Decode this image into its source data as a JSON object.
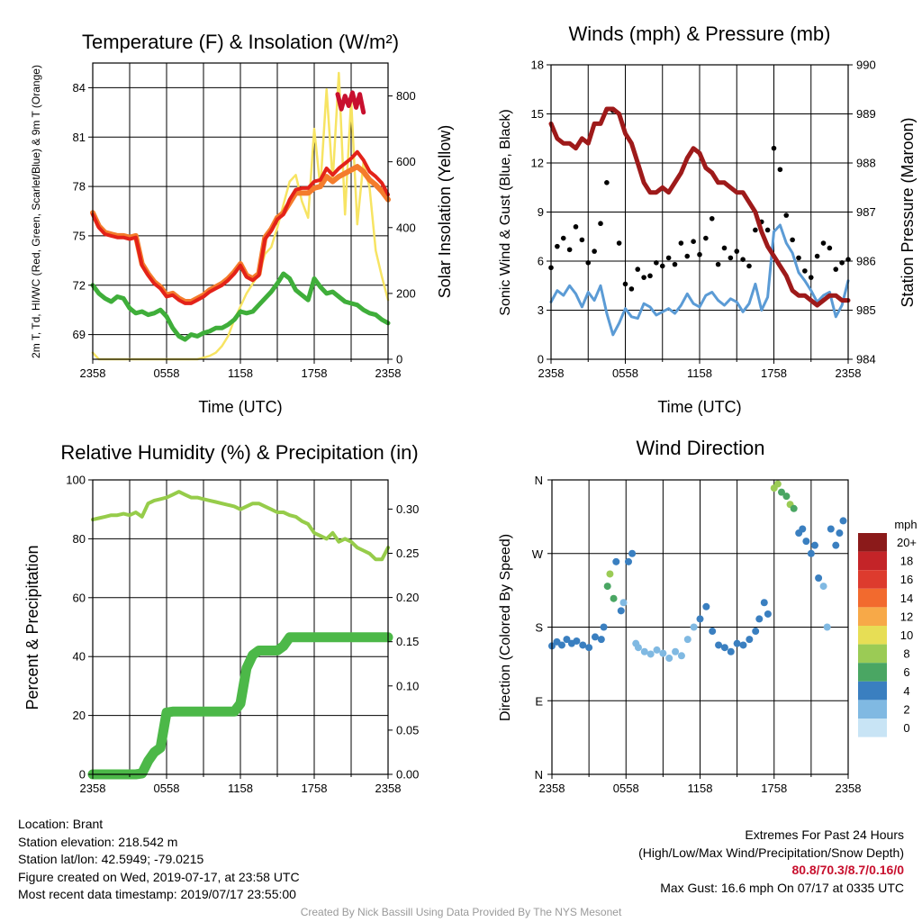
{
  "colors": {
    "air_temp": "#e32219",
    "dewpoint": "#3fae3a",
    "heat_index": "#c8102e",
    "temp_9m": "#f47c2c",
    "insolation": "#f7e463",
    "sonic_wind": "#5b9bd5",
    "gust": "#000000",
    "pressure": "#9e1a1a",
    "rh": "#96cc4a",
    "precip": "#4cb848"
  },
  "footer": {
    "location": "Location: Brant",
    "elevation": "Station elevation: 218.542 m",
    "latlon": "Station lat/lon: 42.5949; -79.0215",
    "created": "Figure created on Wed, 2019-07-17, at 23:58 UTC",
    "recent": "Most recent data timestamp: 2019/07/17 23:55:00",
    "extremes_title": "Extremes For Past 24 Hours",
    "extremes_sub": "(High/Low/Max Wind/Precipitation/Snow Depth)",
    "extremes_values": "80.8/70.3/8.7/0.16/0",
    "max_gust": "Max Gust: 16.6 mph On 07/17 at 0335 UTC",
    "credit": "Created By Nick Bassill Using Data Provided By The NYS Mesonet"
  },
  "chart_data": [
    {
      "type": "line",
      "title": "Temperature (F) & Insolation (W/m²)",
      "xlabel": "Time (UTC)",
      "ylabel": "2m T, Td, HI/WC (Red, Green, Scarlet/Blue) & 9m T (Orange)",
      "ylabel_right": "Solar Insolation (Yellow)",
      "x_ticks": [
        "2358",
        "0558",
        "1158",
        "1758",
        "2358"
      ],
      "ylim": [
        67.5,
        85.5
      ],
      "y_ticks": [
        69,
        72,
        75,
        78,
        81,
        84
      ],
      "ylim_right": [
        0,
        900
      ],
      "y_ticks_right": [
        0,
        200,
        400,
        600,
        800
      ],
      "x_hours": [
        0,
        0.5,
        1,
        1.5,
        2,
        2.5,
        3,
        3.5,
        4,
        4.5,
        5,
        5.5,
        6,
        6.5,
        7,
        7.5,
        8,
        8.5,
        9,
        9.5,
        10,
        10.5,
        11,
        11.5,
        12,
        12.5,
        13,
        13.5,
        14,
        14.5,
        15,
        15.5,
        16,
        16.5,
        17,
        17.5,
        18,
        18.5,
        19,
        19.5,
        20,
        20.5,
        21,
        21.5,
        22,
        22.5,
        23,
        23.5,
        24
      ],
      "series": [
        {
          "key": "temp",
          "values": [
            76.3,
            75.5,
            75.1,
            75.0,
            74.9,
            74.9,
            74.8,
            74.9,
            73.2,
            72.6,
            72.1,
            71.8,
            71.3,
            71.4,
            71.1,
            70.9,
            70.9,
            71.1,
            71.3,
            71.6,
            71.8,
            72.0,
            72.3,
            72.7,
            73.2,
            72.5,
            72.3,
            72.6,
            74.8,
            75.3,
            76.0,
            76.3,
            77.2,
            77.8,
            77.9,
            77.9,
            78.3,
            78.4,
            79.1,
            78.7,
            79.1,
            79.4,
            79.7,
            80.1,
            79.6,
            78.9,
            78.6,
            78.2,
            77.5
          ]
        },
        {
          "key": "temp9m",
          "values": [
            76.4,
            75.6,
            75.2,
            75.1,
            75.0,
            75.0,
            74.9,
            75.0,
            73.3,
            72.7,
            72.2,
            71.9,
            71.4,
            71.5,
            71.2,
            71.0,
            71.0,
            71.2,
            71.4,
            71.7,
            71.9,
            72.1,
            72.4,
            72.8,
            73.3,
            72.6,
            72.4,
            72.7,
            74.9,
            75.4,
            76.1,
            76.4,
            77.0,
            77.6,
            77.6,
            77.6,
            77.9,
            78.0,
            78.6,
            78.3,
            78.6,
            78.8,
            79.0,
            79.2,
            78.9,
            78.4,
            78.1,
            77.7,
            77.2
          ]
        },
        {
          "key": "heat",
          "points": [
            [
              19.9,
              83.6
            ],
            [
              20.2,
              82.7
            ],
            [
              20.5,
              83.5
            ],
            [
              20.8,
              82.9
            ],
            [
              21.1,
              83.7
            ],
            [
              21.4,
              82.8
            ],
            [
              21.7,
              83.6
            ],
            [
              22.0,
              82.5
            ]
          ]
        },
        {
          "key": "dew",
          "values": [
            72.0,
            71.5,
            71.2,
            71.0,
            71.3,
            71.2,
            70.6,
            70.3,
            70.4,
            70.2,
            70.3,
            70.5,
            70.1,
            69.4,
            68.9,
            68.7,
            69.0,
            68.9,
            69.1,
            69.2,
            69.4,
            69.4,
            69.6,
            69.9,
            70.4,
            70.3,
            70.4,
            70.8,
            71.2,
            71.6,
            72.1,
            72.7,
            72.4,
            71.7,
            71.4,
            71.1,
            72.4,
            71.9,
            71.5,
            71.6,
            71.3,
            71.0,
            70.9,
            70.8,
            70.5,
            70.3,
            70.2,
            69.9,
            69.7
          ]
        },
        {
          "key": "insolation",
          "values": [
            20,
            0,
            0,
            0,
            0,
            0,
            0,
            0,
            0,
            0,
            0,
            0,
            0,
            0,
            0,
            0,
            0,
            0,
            5,
            10,
            20,
            40,
            70,
            120,
            160,
            200,
            230,
            260,
            320,
            340,
            400,
            470,
            540,
            560,
            480,
            430,
            700,
            520,
            820,
            540,
            870,
            440,
            790,
            410,
            600,
            520,
            330,
            250,
            180
          ]
        }
      ]
    },
    {
      "type": "line",
      "title": "Winds (mph) & Pressure (mb)",
      "xlabel": "Time (UTC)",
      "ylabel": "Sonic Wind & Gust (Blue, Black)",
      "ylabel_right": "Station Pressure (Maroon)",
      "x_ticks": [
        "2358",
        "0558",
        "1158",
        "1758",
        "2358"
      ],
      "ylim": [
        0,
        18
      ],
      "y_ticks": [
        0,
        3,
        6,
        9,
        12,
        15,
        18
      ],
      "ylim_right": [
        984,
        990
      ],
      "y_ticks_right": [
        984,
        985,
        986,
        987,
        988,
        989,
        990
      ],
      "x_hours": [
        0,
        0.5,
        1,
        1.5,
        2,
        2.5,
        3,
        3.5,
        4,
        4.5,
        5,
        5.5,
        6,
        6.5,
        7,
        7.5,
        8,
        8.5,
        9,
        9.5,
        10,
        10.5,
        11,
        11.5,
        12,
        12.5,
        13,
        13.5,
        14,
        14.5,
        15,
        15.5,
        16,
        16.5,
        17,
        17.5,
        18,
        18.5,
        19,
        19.5,
        20,
        20.5,
        21,
        21.5,
        22,
        22.5,
        23,
        23.5,
        24
      ],
      "series": [
        {
          "key": "wind",
          "values": [
            3.5,
            4.2,
            3.9,
            4.5,
            4.0,
            3.2,
            4.1,
            3.6,
            4.5,
            2.8,
            1.5,
            2.2,
            3.1,
            2.6,
            2.5,
            3.4,
            3.2,
            2.7,
            2.9,
            3.1,
            2.8,
            3.3,
            4.0,
            3.4,
            3.2,
            3.9,
            4.1,
            3.6,
            3.3,
            3.7,
            3.5,
            2.9,
            3.4,
            4.6,
            3.0,
            3.8,
            7.8,
            8.2,
            7.1,
            6.5,
            5.3,
            4.8,
            4.2,
            3.5,
            3.9,
            4.1,
            2.6,
            3.3,
            4.8
          ]
        },
        {
          "key": "gust",
          "values": [
            5.6,
            6.9,
            7.4,
            6.7,
            8.1,
            7.3,
            5.9,
            6.6,
            8.3,
            10.8,
            15.2,
            7.1,
            4.6,
            4.3,
            5.5,
            5.0,
            5.1,
            5.9,
            5.7,
            6.2,
            5.8,
            7.1,
            6.3,
            7.2,
            6.4,
            7.4,
            8.6,
            5.8,
            6.8,
            6.2,
            6.6,
            6.1,
            5.7,
            7.9,
            8.4,
            7.9,
            12.9,
            11.6,
            8.8,
            7.3,
            6.2,
            5.4,
            5.0,
            6.3,
            7.1,
            6.8,
            5.5,
            5.9,
            6.1
          ]
        },
        {
          "key": "pressure",
          "values": [
            988.8,
            988.5,
            988.4,
            988.4,
            988.3,
            988.5,
            988.4,
            988.8,
            988.8,
            989.1,
            989.1,
            989.0,
            988.6,
            988.4,
            988.0,
            987.6,
            987.4,
            987.4,
            987.5,
            987.4,
            987.6,
            987.8,
            988.1,
            988.3,
            988.2,
            987.9,
            987.8,
            987.6,
            987.6,
            987.5,
            987.4,
            987.4,
            987.2,
            987.0,
            986.6,
            986.3,
            986.1,
            985.9,
            985.7,
            985.4,
            985.3,
            985.3,
            985.2,
            985.1,
            985.2,
            985.3,
            985.3,
            985.2,
            985.2
          ]
        }
      ]
    },
    {
      "type": "line",
      "title": "Relative Humidity (%) & Precipitation (in)",
      "xlabel": "",
      "ylabel": "Percent & Precipitation",
      "x_ticks": [
        "2358",
        "0558",
        "1158",
        "1758",
        "2358"
      ],
      "ylim": [
        0,
        100
      ],
      "y_ticks": [
        0,
        20,
        40,
        60,
        80,
        100
      ],
      "ylim_right": [
        0,
        0.333
      ],
      "y_ticks_right": [
        "0.00",
        "0.05",
        "0.10",
        "0.15",
        "0.20",
        "0.25",
        "0.30"
      ],
      "x_hours": [
        0,
        0.5,
        1,
        1.5,
        2,
        2.5,
        3,
        3.5,
        4,
        4.5,
        5,
        5.5,
        6,
        6.5,
        7,
        7.5,
        8,
        8.5,
        9,
        9.5,
        10,
        10.5,
        11,
        11.5,
        12,
        12.5,
        13,
        13.5,
        14,
        14.5,
        15,
        15.5,
        16,
        16.5,
        17,
        17.5,
        18,
        18.5,
        19,
        19.5,
        20,
        20.5,
        21,
        21.5,
        22,
        22.5,
        23,
        23.5,
        24
      ],
      "series": [
        {
          "key": "rh",
          "values": [
            86.5,
            87,
            87.5,
            88,
            88,
            88.5,
            88,
            89,
            87.5,
            92,
            93,
            93.5,
            94,
            95,
            96,
            95,
            94,
            94,
            93.5,
            93,
            92.5,
            92,
            91.5,
            91,
            90,
            91,
            92,
            92,
            91,
            90,
            89,
            89,
            88,
            87.5,
            86,
            85,
            82,
            81,
            80,
            82,
            79,
            80,
            79,
            77,
            76,
            75,
            73,
            73,
            77
          ]
        },
        {
          "key": "precip",
          "values": [
            0,
            0,
            0,
            0,
            0,
            0,
            0,
            0,
            0.001,
            0.015,
            0.025,
            0.03,
            0.07,
            0.071,
            0.071,
            0.071,
            0.071,
            0.071,
            0.071,
            0.071,
            0.071,
            0.071,
            0.071,
            0.071,
            0.08,
            0.12,
            0.135,
            0.14,
            0.14,
            0.14,
            0.14,
            0.145,
            0.155,
            0.155,
            0.155,
            0.155,
            0.155,
            0.155,
            0.155,
            0.155,
            0.155,
            0.155,
            0.155,
            0.155,
            0.155,
            0.155,
            0.155,
            0.155,
            0.155
          ]
        }
      ]
    },
    {
      "type": "scatter",
      "title": "Wind Direction",
      "ylabel": "Direction (Colored By Speed)",
      "x_ticks": [
        "2358",
        "0558",
        "1158",
        "1758",
        "2358"
      ],
      "y_ticks": [
        "N",
        "E",
        "S",
        "W",
        "N"
      ],
      "ylim": [
        0,
        360
      ],
      "legend_title": "mph",
      "legend_labels": [
        "20+",
        "18",
        "16",
        "14",
        "12",
        "10",
        "8",
        "6",
        "4",
        "2",
        "0"
      ],
      "legend_colors": [
        "#8b1a1a",
        "#c42428",
        "#dd3b2e",
        "#f26a2e",
        "#f7a948",
        "#e7de55",
        "#9bcb55",
        "#4aa663",
        "#3a7fc0",
        "#80b9e2",
        "#c8e4f5"
      ],
      "points": [
        [
          0,
          157,
          3
        ],
        [
          0.4,
          162,
          3
        ],
        [
          0.8,
          158,
          4
        ],
        [
          1.2,
          165,
          3
        ],
        [
          1.6,
          160,
          3
        ],
        [
          2,
          163,
          4
        ],
        [
          2.5,
          158,
          3
        ],
        [
          3,
          155,
          3
        ],
        [
          3.5,
          168,
          3
        ],
        [
          4,
          165,
          4
        ],
        [
          4.2,
          180,
          3
        ],
        [
          4.5,
          230,
          6
        ],
        [
          4.7,
          245,
          7
        ],
        [
          5,
          215,
          5
        ],
        [
          5.2,
          260,
          3
        ],
        [
          5.6,
          200,
          3
        ],
        [
          5.8,
          210,
          2
        ],
        [
          6.2,
          260,
          4
        ],
        [
          6.5,
          270,
          3
        ],
        [
          6.8,
          160,
          2
        ],
        [
          7,
          155,
          2
        ],
        [
          7.5,
          150,
          2
        ],
        [
          8,
          147,
          2
        ],
        [
          8.5,
          152,
          2
        ],
        [
          9,
          148,
          2
        ],
        [
          9.5,
          142,
          1
        ],
        [
          10,
          150,
          2
        ],
        [
          10.5,
          145,
          2
        ],
        [
          11,
          165,
          2
        ],
        [
          11.5,
          180,
          2
        ],
        [
          12,
          190,
          3
        ],
        [
          12.5,
          205,
          4
        ],
        [
          13,
          175,
          3
        ],
        [
          13.5,
          158,
          3
        ],
        [
          14,
          155,
          3
        ],
        [
          14.5,
          150,
          3
        ],
        [
          15,
          160,
          3
        ],
        [
          15.5,
          158,
          3
        ],
        [
          16,
          165,
          3
        ],
        [
          16.5,
          175,
          3
        ],
        [
          16.8,
          190,
          3
        ],
        [
          17.2,
          210,
          3
        ],
        [
          17.5,
          196,
          4
        ],
        [
          18,
          350,
          7
        ],
        [
          18.3,
          355,
          7
        ],
        [
          18.6,
          345,
          6
        ],
        [
          19,
          340,
          6
        ],
        [
          19.3,
          330,
          7
        ],
        [
          19.6,
          325,
          5
        ],
        [
          20,
          295,
          4
        ],
        [
          20.3,
          300,
          3
        ],
        [
          20.6,
          285,
          4
        ],
        [
          21,
          270,
          4
        ],
        [
          21.3,
          280,
          3
        ],
        [
          21.6,
          240,
          3
        ],
        [
          22,
          230,
          2
        ],
        [
          22.3,
          180,
          2
        ],
        [
          22.6,
          300,
          4
        ],
        [
          23,
          280,
          4
        ],
        [
          23.3,
          295,
          3
        ],
        [
          23.6,
          310,
          4
        ]
      ]
    }
  ]
}
